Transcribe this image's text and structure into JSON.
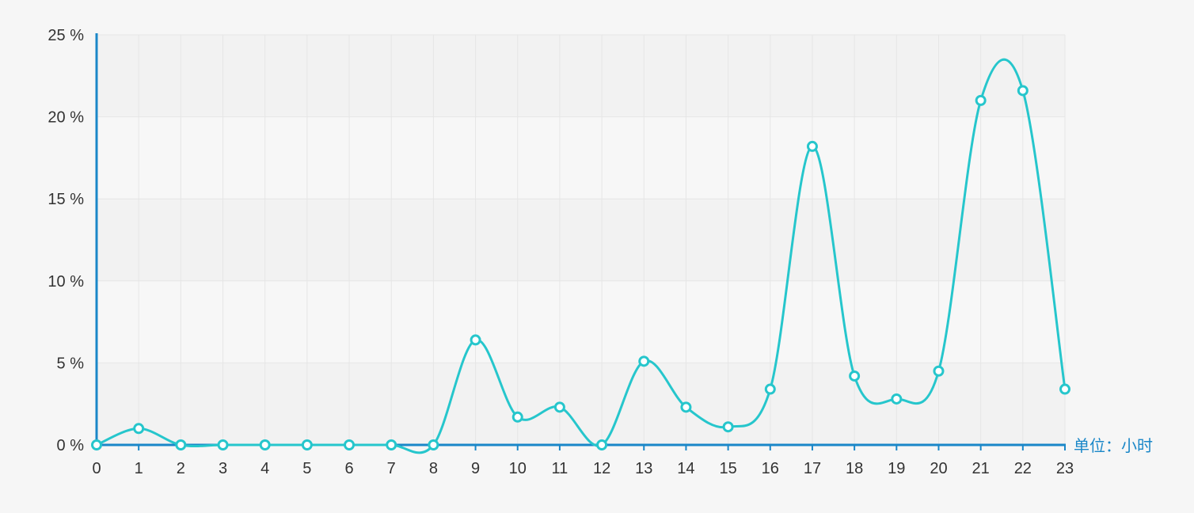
{
  "chart_data": {
    "type": "line",
    "smooth": true,
    "categories": [
      "0",
      "1",
      "2",
      "3",
      "4",
      "5",
      "6",
      "7",
      "8",
      "9",
      "10",
      "11",
      "12",
      "13",
      "14",
      "15",
      "16",
      "17",
      "18",
      "19",
      "20",
      "21",
      "22",
      "23"
    ],
    "series": [
      {
        "values": [
          0,
          1.0,
          0,
          0,
          0,
          0,
          0,
          0,
          0,
          6.4,
          1.7,
          2.3,
          0,
          5.1,
          2.3,
          1.1,
          3.4,
          18.2,
          4.2,
          2.8,
          4.5,
          21.0,
          21.6,
          3.4
        ]
      }
    ],
    "yticks": [
      "0 %",
      "5 %",
      "10 %",
      "15 %",
      "20 %",
      "25 %"
    ],
    "ylim": [
      0,
      25
    ],
    "xunit_label": "单位：小时",
    "grid": true,
    "colors": {
      "line": "#26c6cc",
      "axis": "#1a87c8",
      "band_dark": "#f2f2f2",
      "band_light": "#f7f7f7",
      "grid": "#e6e6e6"
    }
  }
}
